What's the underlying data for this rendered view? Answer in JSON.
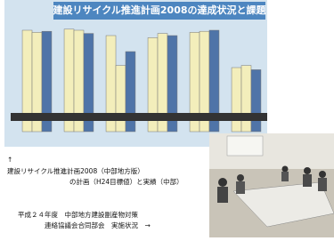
{
  "chart_data": {
    "type": "bar",
    "title": "建設リサイクル推進計画2008の達成状況と課題",
    "categories": [
      null,
      null,
      null,
      null,
      null,
      null
    ],
    "series": [
      {
        "color": "#f3eebb",
        "values": [
          95,
          96,
          90,
          88,
          93,
          60
        ]
      },
      {
        "color": "#f3eebb",
        "values": [
          93,
          95,
          62,
          92,
          94,
          62
        ]
      },
      {
        "color": "#4f74a8",
        "values": [
          94,
          92,
          75,
          90,
          95,
          58
        ]
      }
    ],
    "ylim": [
      0,
      100
    ]
  },
  "caption": {
    "arrow": "↑",
    "line1": "建設リサイクル推進計画2008（中部地方版）",
    "line2": "の計画（H24目標値）と実績（中部）"
  },
  "photo_caption": {
    "line1": "平成２４年度　中部地方建設副産物対策",
    "line2": "連絡協議会合同部会　実施状況　→"
  }
}
